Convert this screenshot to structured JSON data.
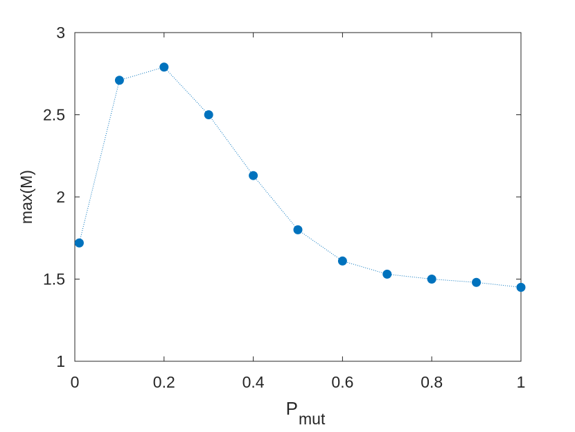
{
  "chart_data": {
    "type": "scatter",
    "xlabel": "P",
    "xlabel_sub": "mut",
    "ylabel": "max(M)",
    "x": [
      0.01,
      0.1,
      0.2,
      0.3,
      0.4,
      0.5,
      0.6,
      0.7,
      0.8,
      0.9,
      1.0
    ],
    "series": [
      {
        "color": "#0072bd",
        "values": [
          1.72,
          2.71,
          2.79,
          2.5,
          2.13,
          1.8,
          1.61,
          1.53,
          1.5,
          1.48,
          1.45
        ]
      }
    ],
    "line_style": "dotted",
    "xlim": [
      0,
      1
    ],
    "xticks": [
      0,
      0.2,
      0.4,
      0.6,
      0.8,
      1
    ],
    "ylim": [
      1,
      3
    ],
    "yticks": [
      1,
      1.5,
      2,
      2.5,
      3
    ],
    "grid": false,
    "box": true
  }
}
